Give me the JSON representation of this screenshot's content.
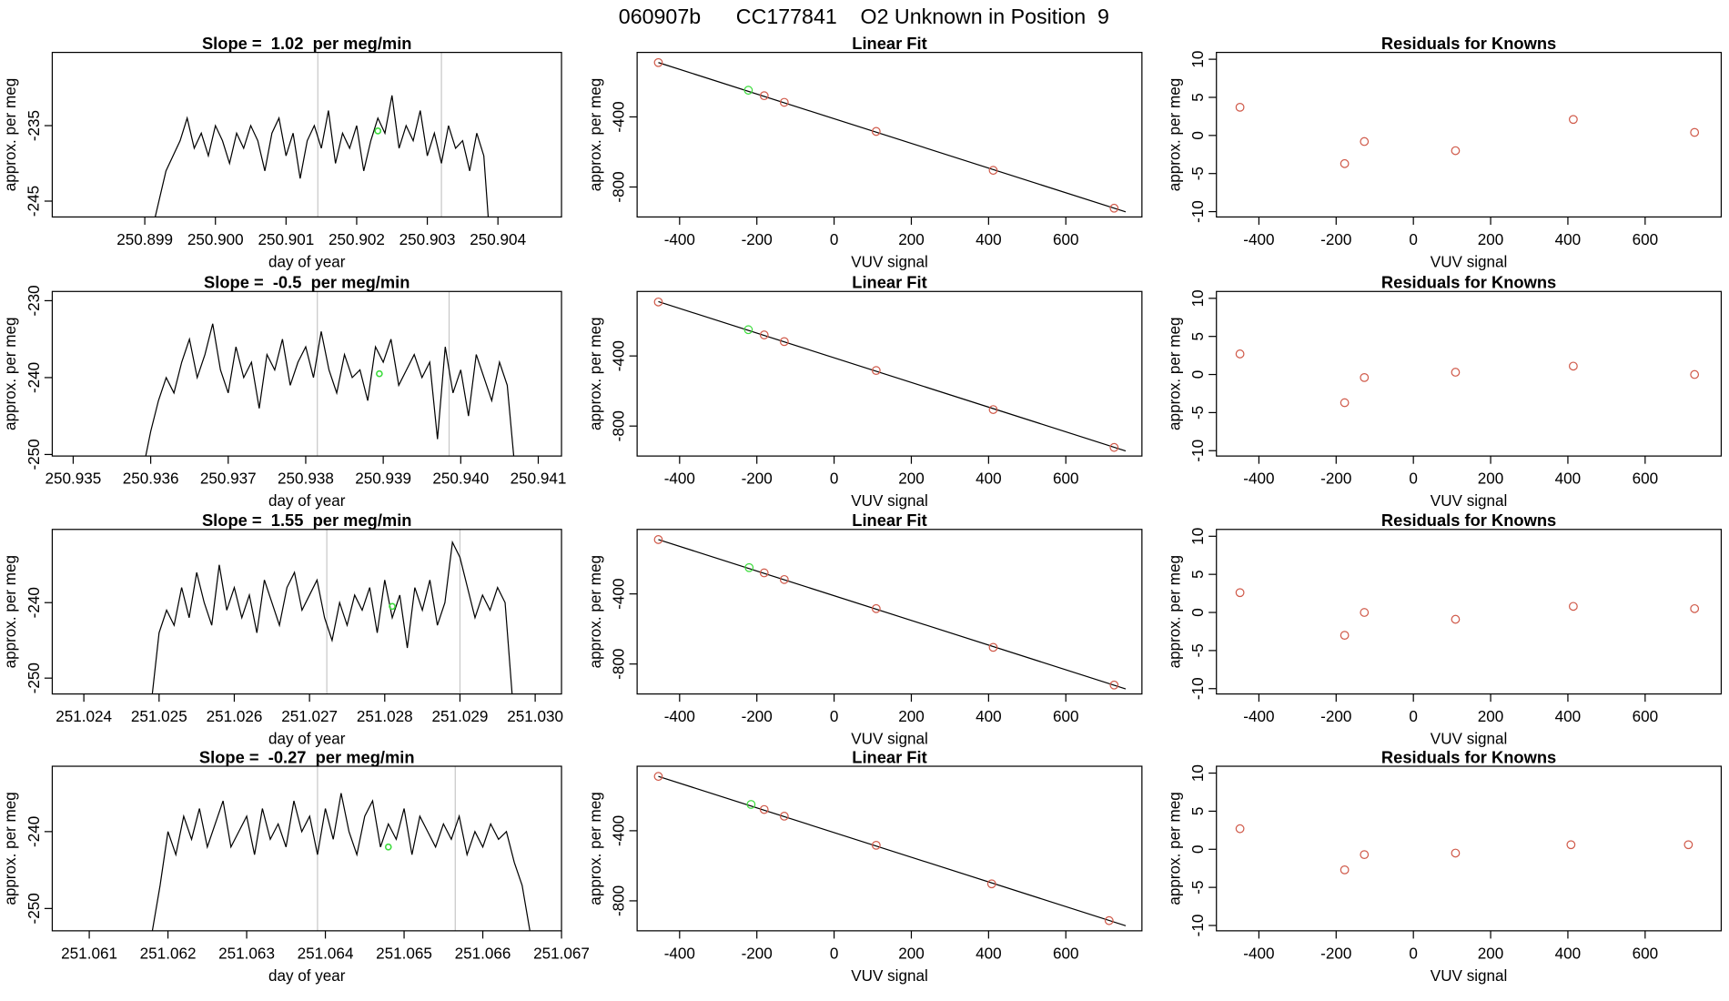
{
  "page_title": "060907b      CC177841    O2 Unknown in Position  9",
  "chart_data": [
    {
      "type": "line",
      "title": "Slope =  1.02  per meg/min",
      "xlabel": "day of year",
      "ylabel": "approx. per meg",
      "color": "#000000",
      "x": [
        250.8991,
        250.8992,
        250.8993,
        250.8994,
        250.8995,
        250.8996,
        250.8997,
        250.8998,
        250.8999,
        250.9,
        250.9001,
        250.9002,
        250.9003,
        250.9004,
        250.9005,
        250.9006,
        250.9007,
        250.9008,
        250.9009,
        250.901,
        250.9011,
        250.9012,
        250.9013,
        250.9014,
        250.9015,
        250.9016,
        250.9017,
        250.9018,
        250.9019,
        250.902,
        250.9021,
        250.9022,
        250.9023,
        250.9024,
        250.9025,
        250.9026,
        250.9027,
        250.9028,
        250.9029,
        250.903,
        250.9031,
        250.9032,
        250.9033,
        250.9034,
        250.9035,
        250.9036,
        250.9037,
        250.9038,
        250.9039
      ],
      "values": [
        -249,
        -245,
        -241,
        -239,
        -237,
        -234,
        -238,
        -236,
        -239,
        -235,
        -237,
        -240,
        -236,
        -238,
        -235,
        -237,
        -241,
        -236,
        -234,
        -239,
        -236,
        -242,
        -237,
        -235,
        -238,
        -233,
        -240,
        -236,
        -238,
        -235,
        -241,
        -237,
        -234,
        -236,
        -231,
        -238,
        -235,
        -237,
        -233,
        -239,
        -236,
        -240,
        -235,
        -238,
        -237,
        -241,
        -236,
        -239,
        -252
      ],
      "vlines": [
        250.90145,
        250.9032
      ],
      "vline_color": "#c8c8c8",
      "marker": {
        "x": 250.9023,
        "y": -235.7,
        "color": "#3ddc3d"
      },
      "xlim": [
        250.89769,
        250.9049
      ],
      "ylim": [
        -247.1,
        -225.3
      ],
      "xticks": [
        250.899,
        {
          "value": 250.9,
          "label": "250.900"
        },
        250.901,
        250.902,
        250.903,
        250.904
      ],
      "yticks": [
        -245,
        -235
      ]
    },
    {
      "type": "scatter",
      "title": "Linear Fit",
      "xlabel": "VUV signal",
      "ylabel": "approx. per meg",
      "points": {
        "x": [
          -455,
          -181,
          -129,
          109,
          412,
          725
        ],
        "y": [
          -90,
          -279,
          -317,
          -483,
          -705,
          -921
        ],
        "color": "#d05a4a"
      },
      "highlight": {
        "x": -222,
        "y": -248,
        "color": "#3ddc3d"
      },
      "fit_line": {
        "x": [
          -455,
          755
        ],
        "y": [
          -90,
          -942
        ]
      },
      "xlim": [
        -510,
        797
      ],
      "ylim": [
        -971,
        -32
      ],
      "xticks": [
        -400,
        -200,
        0,
        200,
        400,
        600
      ],
      "yticks": [
        -800,
        -400
      ]
    },
    {
      "type": "scatter",
      "title": "Residuals for Knowns",
      "xlabel": "VUV signal",
      "ylabel": "approx. per meg",
      "points": {
        "x": [
          -449,
          -178,
          -127,
          109,
          414,
          728
        ],
        "y": [
          3.7,
          -3.7,
          -0.8,
          -2.0,
          2.1,
          0.4
        ],
        "color": "#d05a4a"
      },
      "xlim": [
        -510,
        797
      ],
      "ylim": [
        -10.7,
        10.9
      ],
      "xticks": [
        -400,
        -200,
        0,
        200,
        400,
        600
      ],
      "yticks": [
        -10,
        -5,
        0,
        5,
        10
      ]
    },
    {
      "type": "line",
      "title": "Slope =  -0.5  per meg/min",
      "xlabel": "day of year",
      "ylabel": "approx. per meg",
      "color": "#000000",
      "x": [
        250.9359,
        250.936,
        250.9361,
        250.9362,
        250.9363,
        250.9364,
        250.9365,
        250.9366,
        250.9367,
        250.9368,
        250.9369,
        250.937,
        250.9371,
        250.9372,
        250.9373,
        250.9374,
        250.9375,
        250.9376,
        250.9377,
        250.9378,
        250.9379,
        250.938,
        250.9381,
        250.9382,
        250.9383,
        250.9384,
        250.9385,
        250.9386,
        250.9387,
        250.9388,
        250.9389,
        250.939,
        250.9391,
        250.9392,
        250.9393,
        250.9394,
        250.9395,
        250.9396,
        250.9397,
        250.9398,
        250.9399,
        250.94,
        250.9401,
        250.9402,
        250.9403,
        250.9404,
        250.9405,
        250.9406,
        250.9407
      ],
      "values": [
        -252,
        -247,
        -243,
        -240,
        -242,
        -238,
        -235,
        -240,
        -237,
        -233,
        -239,
        -242,
        -236,
        -240,
        -238,
        -244,
        -237,
        -239,
        -235,
        -241,
        -238,
        -236,
        -240,
        -234,
        -239,
        -242,
        -237,
        -240,
        -239,
        -243,
        -236,
        -238,
        -235,
        -241,
        -239,
        -237,
        -240,
        -238,
        -248,
        -236,
        -242,
        -239,
        -245,
        -237,
        -240,
        -243,
        -238,
        -241,
        -252
      ],
      "vlines": [
        250.93815,
        250.93985
      ],
      "vline_color": "#c8c8c8",
      "marker": {
        "x": 250.93895,
        "y": -239.5,
        "color": "#3ddc3d"
      },
      "xlim": [
        250.93473,
        250.9413
      ],
      "ylim": [
        -250.2,
        -228.8
      ],
      "xticks": [
        250.935,
        250.936,
        250.937,
        250.938,
        250.939,
        {
          "value": 250.94,
          "label": "250.940"
        },
        250.941
      ],
      "yticks": [
        -250,
        -240,
        -230
      ]
    },
    {
      "type": "scatter",
      "title": "Linear Fit",
      "xlabel": "VUV signal",
      "ylabel": "approx. per meg",
      "points": {
        "x": [
          -455,
          -181,
          -129,
          109,
          412,
          725
        ],
        "y": [
          -92,
          -280,
          -318,
          -483,
          -706,
          -922
        ],
        "color": "#d05a4a"
      },
      "highlight": {
        "x": -222,
        "y": -250,
        "color": "#3ddc3d"
      },
      "fit_line": {
        "x": [
          -455,
          755
        ],
        "y": [
          -90,
          -942
        ]
      },
      "xlim": [
        -510,
        797
      ],
      "ylim": [
        -971,
        -32
      ],
      "xticks": [
        -400,
        -200,
        0,
        200,
        400,
        600
      ],
      "yticks": [
        -800,
        -400
      ]
    },
    {
      "type": "scatter",
      "title": "Residuals for Knowns",
      "xlabel": "VUV signal",
      "ylabel": "approx. per meg",
      "points": {
        "x": [
          -449,
          -178,
          -127,
          109,
          414,
          728
        ],
        "y": [
          2.7,
          -3.7,
          -0.4,
          0.3,
          1.1,
          0.0
        ],
        "color": "#d05a4a"
      },
      "xlim": [
        -510,
        797
      ],
      "ylim": [
        -10.7,
        10.9
      ],
      "xticks": [
        -400,
        -200,
        0,
        200,
        400,
        600
      ],
      "yticks": [
        -10,
        -5,
        0,
        5,
        10
      ]
    },
    {
      "type": "line",
      "title": "Slope =  1.55  per meg/min",
      "xlabel": "day of year",
      "ylabel": "approx. per meg",
      "color": "#000000",
      "x": [
        251.0249,
        251.025,
        251.0251,
        251.0252,
        251.0253,
        251.0254,
        251.0255,
        251.0256,
        251.0257,
        251.0258,
        251.0259,
        251.026,
        251.0261,
        251.0262,
        251.0263,
        251.0264,
        251.0265,
        251.0266,
        251.0267,
        251.0268,
        251.0269,
        251.027,
        251.0271,
        251.0272,
        251.0273,
        251.0274,
        251.0275,
        251.0276,
        251.0277,
        251.0278,
        251.0279,
        251.028,
        251.0281,
        251.0282,
        251.0283,
        251.0284,
        251.0285,
        251.0286,
        251.0287,
        251.0288,
        251.0289,
        251.029,
        251.0291,
        251.0292,
        251.0293,
        251.0294,
        251.0295,
        251.0296,
        251.0297
      ],
      "values": [
        -253,
        -244,
        -241,
        -243,
        -238,
        -242,
        -236,
        -240,
        -243,
        -235,
        -241,
        -238,
        -242,
        -239,
        -244,
        -237,
        -240,
        -243,
        -238,
        -236,
        -241,
        -239,
        -237,
        -242,
        -245,
        -240,
        -243,
        -239,
        -241,
        -238,
        -244,
        -237,
        -242,
        -239,
        -246,
        -238,
        -241,
        -237,
        -243,
        -240,
        -232,
        -234,
        -238,
        -242,
        -239,
        -241,
        -238,
        -240,
        -253
      ],
      "vlines": [
        251.02723,
        251.029
      ],
      "vline_color": "#c8c8c8",
      "marker": {
        "x": 251.0281,
        "y": -240.5,
        "color": "#3ddc3d"
      },
      "xlim": [
        251.02358,
        251.03035
      ],
      "ylim": [
        -252.1,
        -230.3
      ],
      "xticks": [
        251.024,
        251.025,
        251.026,
        251.027,
        251.028,
        251.029,
        {
          "value": 251.03,
          "label": "251.030"
        }
      ],
      "yticks": [
        -250,
        -240
      ]
    },
    {
      "type": "scatter",
      "title": "Linear Fit",
      "xlabel": "VUV signal",
      "ylabel": "approx. per meg",
      "points": {
        "x": [
          -455,
          -181,
          -129,
          109,
          412,
          725
        ],
        "y": [
          -90,
          -280,
          -318,
          -484,
          -705,
          -920
        ],
        "color": "#d05a4a"
      },
      "highlight": {
        "x": -220,
        "y": -250,
        "color": "#3ddc3d"
      },
      "fit_line": {
        "x": [
          -455,
          755
        ],
        "y": [
          -90,
          -942
        ]
      },
      "xlim": [
        -510,
        797
      ],
      "ylim": [
        -971,
        -32
      ],
      "xticks": [
        -400,
        -200,
        0,
        200,
        400,
        600
      ],
      "yticks": [
        -800,
        -400
      ]
    },
    {
      "type": "scatter",
      "title": "Residuals for Knowns",
      "xlabel": "VUV signal",
      "ylabel": "approx. per meg",
      "points": {
        "x": [
          -449,
          -178,
          -127,
          109,
          414,
          728
        ],
        "y": [
          2.6,
          -3.0,
          0.0,
          -0.9,
          0.8,
          0.5
        ],
        "color": "#d05a4a"
      },
      "xlim": [
        -510,
        797
      ],
      "ylim": [
        -10.7,
        10.9
      ],
      "xticks": [
        -400,
        -200,
        0,
        200,
        400,
        600
      ],
      "yticks": [
        -10,
        -5,
        0,
        5,
        10
      ]
    },
    {
      "type": "line",
      "title": "Slope =  -0.27  per meg/min",
      "xlabel": "day of year",
      "ylabel": "approx. per meg",
      "color": "#000000",
      "x": [
        251.0618,
        251.0619,
        251.062,
        251.0621,
        251.0622,
        251.0623,
        251.0624,
        251.0625,
        251.0626,
        251.0627,
        251.0628,
        251.0629,
        251.063,
        251.0631,
        251.0632,
        251.0633,
        251.0634,
        251.0635,
        251.0636,
        251.0637,
        251.0638,
        251.0639,
        251.064,
        251.0641,
        251.0642,
        251.0643,
        251.0644,
        251.0645,
        251.0646,
        251.0647,
        251.0648,
        251.0649,
        251.065,
        251.0651,
        251.0652,
        251.0653,
        251.0654,
        251.0655,
        251.0656,
        251.0657,
        251.0658,
        251.0659,
        251.066,
        251.0661,
        251.0662,
        251.0663,
        251.0664,
        251.0665,
        251.0666
      ],
      "values": [
        -253,
        -247,
        -240,
        -243,
        -238,
        -241,
        -237,
        -242,
        -239,
        -236,
        -242,
        -240,
        -238,
        -243,
        -237,
        -241,
        -239,
        -242,
        -236,
        -240,
        -238,
        -243,
        -237,
        -241,
        -235,
        -240,
        -243,
        -238,
        -236,
        -242,
        -239,
        -241,
        -237,
        -243,
        -238,
        -240,
        -242,
        -239,
        -241,
        -238,
        -243,
        -240,
        -242,
        -239,
        -241,
        -240,
        -244,
        -247,
        -253
      ],
      "vlines": [
        251.0639,
        251.06565
      ],
      "vline_color": "#c8c8c8",
      "marker": {
        "x": 251.0648,
        "y": -242,
        "color": "#3ddc3d"
      },
      "xlim": [
        251.06053,
        251.067
      ],
      "ylim": [
        -252.9,
        -231.5
      ],
      "xticks": [
        251.061,
        251.062,
        251.063,
        251.064,
        251.065,
        251.066,
        251.067
      ],
      "yticks": [
        -250,
        -240
      ]
    },
    {
      "type": "scatter",
      "title": "Linear Fit",
      "xlabel": "VUV signal",
      "ylabel": "approx. per meg",
      "points": {
        "x": [
          -455,
          -181,
          -129,
          109,
          408,
          712
        ],
        "y": [
          -90,
          -279,
          -317,
          -483,
          -703,
          -913
        ],
        "color": "#d05a4a"
      },
      "highlight": {
        "x": -215,
        "y": -250,
        "color": "#3ddc3d"
      },
      "fit_line": {
        "x": [
          -455,
          755
        ],
        "y": [
          -90,
          -942
        ]
      },
      "xlim": [
        -510,
        797
      ],
      "ylim": [
        -971,
        -32
      ],
      "xticks": [
        -400,
        -200,
        0,
        200,
        400,
        600
      ],
      "yticks": [
        -800,
        -400
      ]
    },
    {
      "type": "scatter",
      "title": "Residuals for Knowns",
      "xlabel": "VUV signal",
      "ylabel": "approx. per meg",
      "points": {
        "x": [
          -449,
          -178,
          -127,
          109,
          408,
          712
        ],
        "y": [
          2.7,
          -2.7,
          -0.7,
          -0.5,
          0.6,
          0.6
        ],
        "color": "#d05a4a"
      },
      "xlim": [
        -510,
        797
      ],
      "ylim": [
        -10.7,
        10.9
      ],
      "xticks": [
        -400,
        -200,
        0,
        200,
        400,
        600
      ],
      "yticks": [
        -10,
        -5,
        0,
        5,
        10
      ]
    }
  ]
}
